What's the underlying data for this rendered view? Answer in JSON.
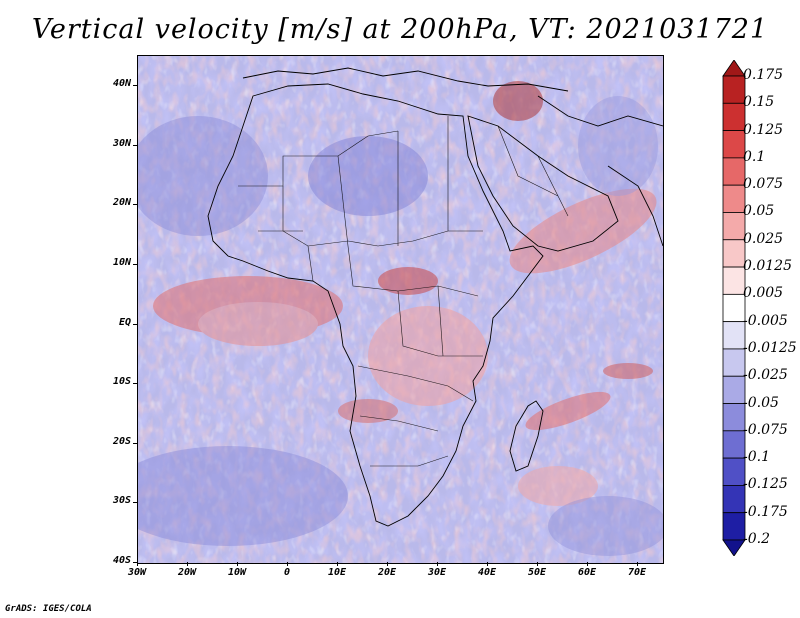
{
  "title": "Vertical velocity [m/s] at 200hPa, VT: 2021031721",
  "credit": "GrADS: IGES/COLA",
  "map": {
    "region": "Africa",
    "variable": "Vertical velocity",
    "units": "m/s",
    "level": "200hPa",
    "valid_time": "2021031721",
    "lon_range": [
      -30,
      75
    ],
    "lat_range": [
      -40,
      45
    ]
  },
  "lat_labels": [
    "40N",
    "30N",
    "20N",
    "10N",
    "EQ",
    "10S",
    "20S",
    "30S",
    "40S"
  ],
  "lon_labels": [
    "30W",
    "20W",
    "10W",
    "0",
    "10E",
    "20E",
    "30E",
    "40E",
    "50E",
    "60E",
    "70E"
  ],
  "colorbar": {
    "labels": [
      "0.175",
      "0.15",
      "0.125",
      "0.1",
      "0.075",
      "0.05",
      "0.025",
      "0.0125",
      "0.005",
      "-0.005",
      "-0.0125",
      "-0.025",
      "-0.05",
      "-0.075",
      "-0.1",
      "-0.125",
      "-0.175",
      "-0.2"
    ],
    "colors": [
      "#a01818",
      "#b82222",
      "#cc3030",
      "#dc4848",
      "#e66868",
      "#ee8a8a",
      "#f4aaaa",
      "#f8c8c8",
      "#fce4e4",
      "#ffffff",
      "#e2e2f6",
      "#c8c8ef",
      "#aaaae6",
      "#8c8cdc",
      "#6e6ed2",
      "#5050c6",
      "#3434b6",
      "#1e1ea4",
      "#12128c"
    ]
  }
}
